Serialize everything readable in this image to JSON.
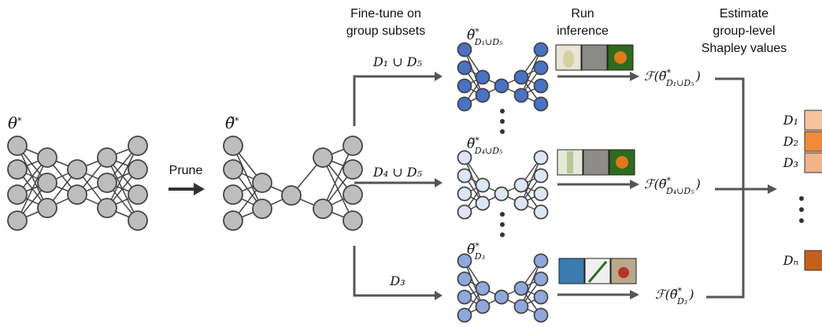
{
  "header": {
    "finetune": [
      "Fine-tune on",
      "group subsets"
    ],
    "inference": [
      "Run",
      "inference"
    ],
    "estimate": [
      "Estimate",
      "group-level",
      "Shapley values"
    ]
  },
  "original_model": {
    "symbol": "θ",
    "sup": "*"
  },
  "prune_label": "Prune",
  "pruned_model": {
    "symbol": "θ̃",
    "sup": "*"
  },
  "branches": [
    {
      "subset": "D₁ ∪ D₅",
      "model": {
        "symbol": "θ̃",
        "sup": "*",
        "sub": "D₁∪D₅"
      },
      "output": {
        "prefix": "ℱ(",
        "symbol": "θ̃",
        "sup": "*",
        "sub": "D₁∪D₅",
        "suffix": ")"
      }
    },
    {
      "subset": "D₄ ∪ D₅",
      "model": {
        "symbol": "θ̃",
        "sup": "*",
        "sub": "D₄∪D₅"
      },
      "output": {
        "prefix": "ℱ(",
        "symbol": "θ̃",
        "sup": "*",
        "sub": "D₄∪D₅",
        "suffix": ")"
      }
    },
    {
      "subset": "D₃",
      "model": {
        "symbol": "θ̃",
        "sup": "*",
        "sub": "D₃"
      },
      "output": {
        "prefix": "ℱ(",
        "symbol": "θ̃",
        "sup": "*",
        "sub": "D₃",
        "suffix": ")"
      }
    }
  ],
  "groups": [
    "D₁",
    "D₂",
    "D₃",
    "Dₙ"
  ]
}
